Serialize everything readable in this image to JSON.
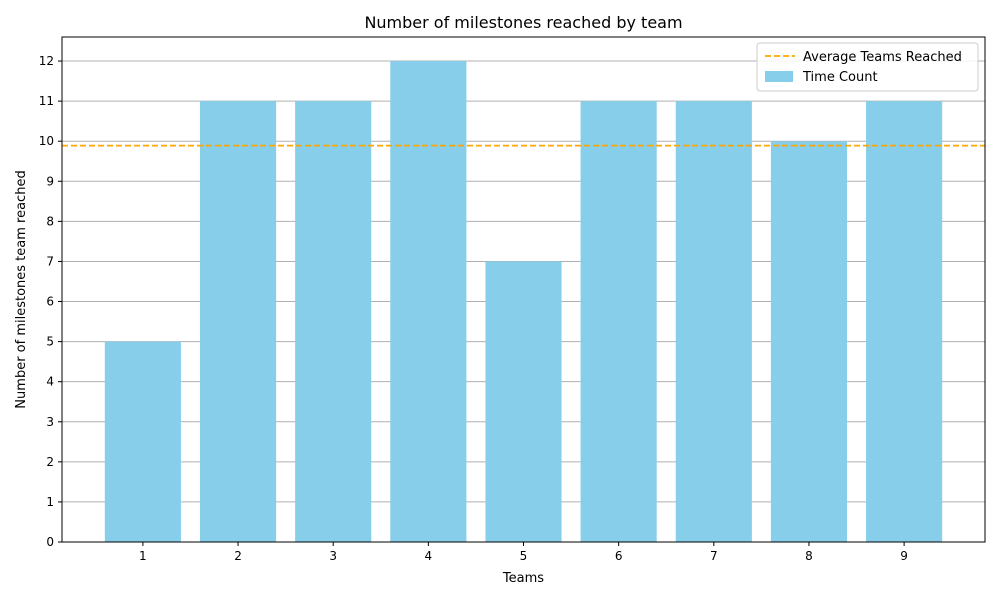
{
  "chart_data": {
    "type": "bar",
    "title": "Number of milestones reached by team",
    "xlabel": "Teams",
    "ylabel": "Number of milestones team reached",
    "categories": [
      "1",
      "2",
      "3",
      "4",
      "5",
      "6",
      "7",
      "8",
      "9"
    ],
    "series": [
      {
        "name": "Time Count",
        "values": [
          5,
          11,
          11,
          12,
          7,
          11,
          11,
          10,
          11
        ],
        "color": "#87CEEB"
      }
    ],
    "reference_lines": [
      {
        "name": "Average Teams Reached",
        "value": 9.89,
        "color": "#FFA500",
        "style": "dashed"
      }
    ],
    "ylim": [
      0,
      12.6
    ],
    "yticks": [
      0,
      1,
      2,
      3,
      4,
      5,
      6,
      7,
      8,
      9,
      10,
      11,
      12
    ],
    "grid": {
      "y": true,
      "x": false
    },
    "legend": {
      "position": "top-right"
    }
  }
}
